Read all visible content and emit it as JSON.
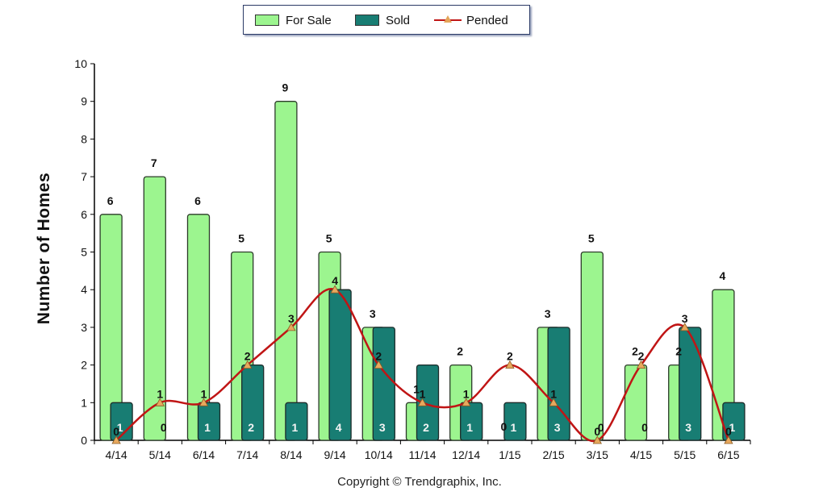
{
  "chart_data": {
    "type": "bar",
    "categories": [
      "4/14",
      "5/14",
      "6/14",
      "7/14",
      "8/14",
      "9/14",
      "10/14",
      "11/14",
      "12/14",
      "1/15",
      "2/15",
      "3/15",
      "4/15",
      "5/15",
      "6/15"
    ],
    "series": [
      {
        "name": "For Sale",
        "type": "bar",
        "color": "#9cf58f",
        "values": [
          6,
          7,
          6,
          5,
          9,
          5,
          3,
          1,
          2,
          0,
          3,
          5,
          2,
          2,
          4
        ]
      },
      {
        "name": "Sold",
        "type": "bar",
        "color": "#187d73",
        "values": [
          1,
          0,
          1,
          2,
          1,
          4,
          3,
          2,
          1,
          1,
          3,
          0,
          0,
          3,
          1
        ]
      },
      {
        "name": "Pended",
        "type": "line",
        "color": "#c01515",
        "marker": "triangle",
        "values": [
          0,
          1,
          1,
          2,
          3,
          4,
          2,
          1,
          1,
          2,
          1,
          0,
          2,
          3,
          0
        ]
      }
    ],
    "ylabel": "Number of Homes",
    "ylim": [
      0,
      10
    ],
    "yticks": [
      "0",
      "1",
      "2",
      "3",
      "4",
      "5",
      "6",
      "7",
      "8",
      "9",
      "10"
    ],
    "legend": "top-center",
    "grid": false
  },
  "legend_labels": {
    "for_sale": "For Sale",
    "sold": "Sold",
    "pended": "Pended"
  },
  "footer": {
    "copyright": "Copyright © Trendgraphix, Inc."
  }
}
